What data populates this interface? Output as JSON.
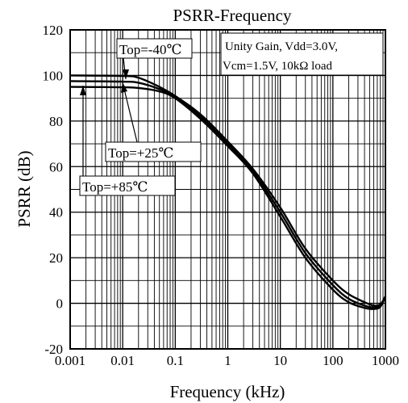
{
  "chart_data": {
    "type": "line",
    "title": "PSRR-Frequency",
    "xlabel": "Frequency (kHz)",
    "ylabel": "PSRR (dB)",
    "x_scale": "log",
    "xlim": [
      0.001,
      1000
    ],
    "ylim": [
      -20,
      120
    ],
    "x_ticks": [
      "0.001",
      "0.01",
      "0.1",
      "1",
      "10",
      "100",
      "1000"
    ],
    "y_ticks": [
      "-20",
      "0",
      "20",
      "40",
      "60",
      "80",
      "100",
      "120"
    ],
    "grid": true,
    "note_lines": [
      "Unity Gain, Vdd=3.0V,",
      "Vcm=1.5V, 10kΩ  load"
    ],
    "series": [
      {
        "name": "Top=-40℃",
        "x": [
          0.001,
          0.01,
          0.02,
          0.05,
          0.1,
          0.3,
          1,
          3,
          10,
          30,
          100,
          200,
          400,
          600,
          800,
          1000
        ],
        "y": [
          100,
          99.8,
          99,
          95,
          91,
          83,
          71,
          59,
          42,
          24,
          10,
          4,
          0.5,
          -1,
          -0.5,
          3
        ]
      },
      {
        "name": "Top=+25℃",
        "x": [
          0.001,
          0.01,
          0.02,
          0.05,
          0.1,
          0.3,
          1,
          3,
          10,
          30,
          100,
          200,
          400,
          600,
          800,
          1000
        ],
        "y": [
          97.5,
          97.3,
          96.8,
          94,
          90.5,
          82,
          70,
          58,
          40,
          22,
          8,
          2,
          -1,
          -1.8,
          -1,
          3
        ]
      },
      {
        "name": "Top=+85℃",
        "x": [
          0.001,
          0.01,
          0.02,
          0.05,
          0.1,
          0.3,
          1,
          3,
          10,
          30,
          100,
          200,
          400,
          600,
          800,
          1000
        ],
        "y": [
          95,
          94.8,
          94.5,
          93,
          90,
          81,
          69,
          57,
          38,
          20,
          6,
          0.5,
          -2,
          -2.5,
          -1.5,
          3
        ]
      }
    ]
  },
  "colors": {
    "line": "#000000",
    "grid": "#000000",
    "background": "#ffffff"
  }
}
